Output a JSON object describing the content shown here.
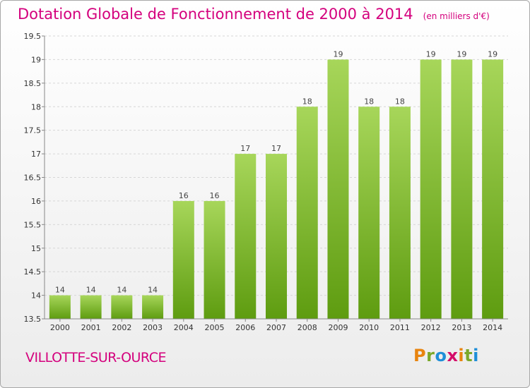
{
  "header": {
    "title": "Dotation Globale de Fonctionnement de 2000 à 2014",
    "subtitle": "(en milliers d'€)"
  },
  "footer": {
    "commune": "VILLOTTE-SUR-OURCE",
    "logo": [
      "P",
      "r",
      "o",
      "x",
      "i",
      "t",
      "i"
    ]
  },
  "colors": {
    "bar_top": "#a7d65a",
    "bar_bottom": "#5e9c10",
    "title": "#d4007d"
  },
  "chart_data": {
    "type": "bar",
    "title": "Dotation Globale de Fonctionnement de 2000 à 2014",
    "subtitle": "(en milliers d'€)",
    "categories": [
      "2000",
      "2001",
      "2002",
      "2003",
      "2004",
      "2005",
      "2006",
      "2007",
      "2008",
      "2009",
      "2010",
      "2011",
      "2012",
      "2013",
      "2014"
    ],
    "values": [
      14,
      14,
      14,
      14,
      16,
      16,
      17,
      17,
      18,
      19,
      18,
      18,
      19,
      19,
      19
    ],
    "ylim": [
      13.5,
      19.5
    ],
    "yticks": [
      "13.5",
      "14",
      "14.5",
      "15",
      "15.5",
      "16",
      "16.5",
      "17",
      "17.5",
      "18",
      "18.5",
      "19",
      "19.5"
    ],
    "grid": true,
    "data_labels": true
  }
}
